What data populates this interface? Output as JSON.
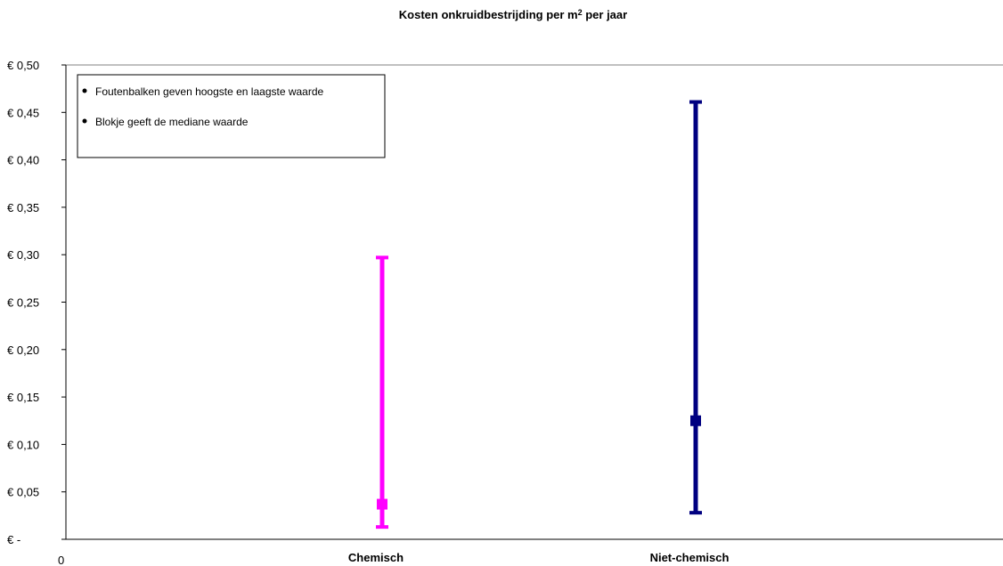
{
  "chart_data": {
    "type": "error_bar",
    "title": {
      "prefix": "Kosten onkruidbestrijding per m",
      "superscript": "2",
      "suffix": " per jaar"
    },
    "categories": [
      "Chemisch",
      "Niet-chemisch"
    ],
    "series": [
      {
        "category": "Chemisch",
        "min": 0.013,
        "median": 0.037,
        "max": 0.297,
        "color": "#ff00ff"
      },
      {
        "category": "Niet-chemisch",
        "min": 0.028,
        "median": 0.125,
        "max": 0.461,
        "color": "#000080"
      }
    ],
    "ylim": [
      0,
      0.5
    ],
    "y_ticks": [
      {
        "value": 0.0,
        "label": "€ -"
      },
      {
        "value": 0.05,
        "label": "€ 0,05"
      },
      {
        "value": 0.1,
        "label": "€ 0,10"
      },
      {
        "value": 0.15,
        "label": "€ 0,15"
      },
      {
        "value": 0.2,
        "label": "€ 0,20"
      },
      {
        "value": 0.25,
        "label": "€ 0,25"
      },
      {
        "value": 0.3,
        "label": "€ 0,30"
      },
      {
        "value": 0.35,
        "label": "€ 0,35"
      },
      {
        "value": 0.4,
        "label": "€ 0,40"
      },
      {
        "value": 0.45,
        "label": "€ 0,45"
      },
      {
        "value": 0.5,
        "label": "€ 0,50"
      }
    ],
    "x_origin_label": "0",
    "legend": {
      "position": "top-left",
      "items": [
        "Foutenbalken geven hoogste en laagste waarde",
        "Blokje geeft de mediane waarde"
      ]
    },
    "grid": false
  }
}
